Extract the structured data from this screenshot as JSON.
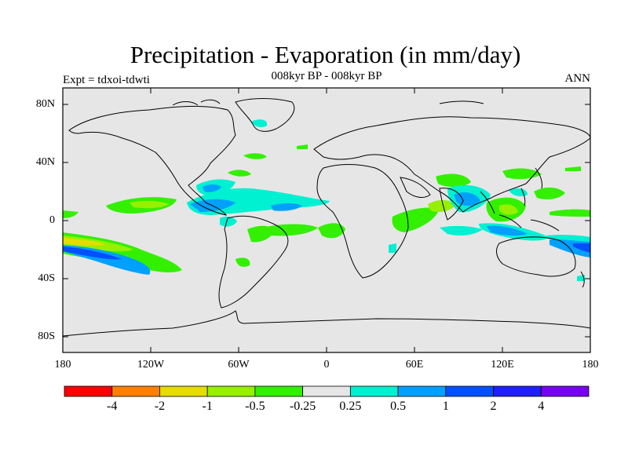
{
  "title": "Precipitation - Evaporation (in mm/day)",
  "subtitle": "008kyr BP - 008kyr BP",
  "left_label": "Expt = tdxoi-tdwti",
  "right_label": "ANN",
  "map": {
    "lat_ticks": [
      "80N",
      "40N",
      "0",
      "40S",
      "80S"
    ],
    "lon_ticks": [
      "180",
      "120W",
      "60W",
      "0",
      "60E",
      "120E",
      "180"
    ],
    "background_color": "#e6e6e6"
  },
  "colorbar": {
    "colors": [
      "#ff0000",
      "#ff8000",
      "#e6dc00",
      "#96f000",
      "#32f000",
      "#e6e6e6",
      "#00f0d2",
      "#00a0ff",
      "#0050ff",
      "#1e1eff",
      "#7800f0"
    ],
    "labels": [
      "-4",
      "-2",
      "-1",
      "-0.5",
      "-0.25",
      "0.25",
      "0.5",
      "1",
      "2",
      "4"
    ]
  }
}
